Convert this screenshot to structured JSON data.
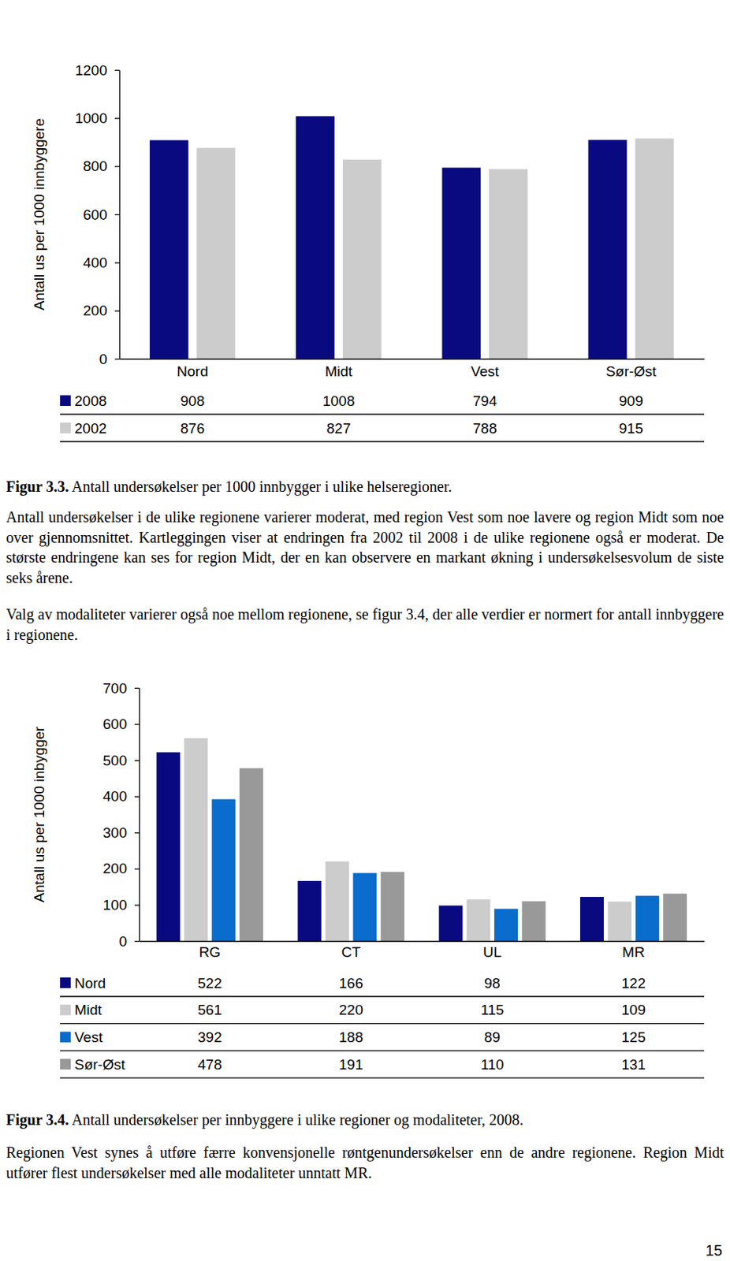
{
  "chart_data": [
    {
      "type": "bar",
      "y_label": "Antall us per 1000 innbyggere",
      "categories": [
        "Nord",
        "Midt",
        "Vest",
        "Sør-Øst"
      ],
      "series": [
        {
          "name": "2008",
          "color": "#0a0a80",
          "values": [
            908,
            1008,
            794,
            909
          ]
        },
        {
          "name": "2002",
          "color": "#cccccc",
          "values": [
            876,
            827,
            788,
            915
          ]
        }
      ],
      "ylim": [
        0,
        1200
      ],
      "yticks": [
        0,
        200,
        400,
        600,
        800,
        1000,
        1200
      ],
      "grid": false
    },
    {
      "type": "bar",
      "y_label": "Antall us per 1000 inbygger",
      "categories": [
        "RG",
        "CT",
        "UL",
        "MR"
      ],
      "series": [
        {
          "name": "Nord",
          "color": "#0a0a80",
          "values": [
            522,
            166,
            98,
            122
          ]
        },
        {
          "name": "Midt",
          "color": "#cccccc",
          "values": [
            561,
            220,
            115,
            109
          ]
        },
        {
          "name": "Vest",
          "color": "#0a6ccc",
          "values": [
            392,
            188,
            89,
            125
          ]
        },
        {
          "name": "Sør-Øst",
          "color": "#999999",
          "values": [
            478,
            191,
            110,
            131
          ]
        }
      ],
      "ylim": [
        0,
        700
      ],
      "yticks": [
        0,
        100,
        200,
        300,
        400,
        500,
        600,
        700
      ],
      "grid": false
    }
  ],
  "document": {
    "sections": [
      {
        "figure_label": "Figur 3.3.",
        "figure_caption": "Antall undersøkelser per 1000 innbygger i ulike helseregioner.",
        "paragraphs": [
          "Antall undersøkelser i de ulike regionene varierer moderat, med region Vest som noe lavere og region Midt som noe over gjennomsnittet. Kartleggingen viser at endringen fra 2002 til 2008 i de ulike regionene også er moderat. De største endringene kan ses for region Midt, der en kan observere en markant økning i undersøkelsesvolum de siste seks årene.",
          "Valg av modaliteter varierer også noe mellom regionene, se figur 3.4, der alle verdier er normert for antall innbyggere i regionene."
        ]
      },
      {
        "figure_label": "Figur 3.4.",
        "figure_caption": "Antall undersøkelser per innbyggere i ulike regioner og modaliteter, 2008.",
        "paragraphs": [
          "Regionen Vest synes å utføre færre konvensjonelle røntgenundersøkelser enn de andre regionene. Region Midt utfører flest undersøkelser med alle modaliteter unntatt MR."
        ]
      }
    ],
    "page_number": 15
  }
}
